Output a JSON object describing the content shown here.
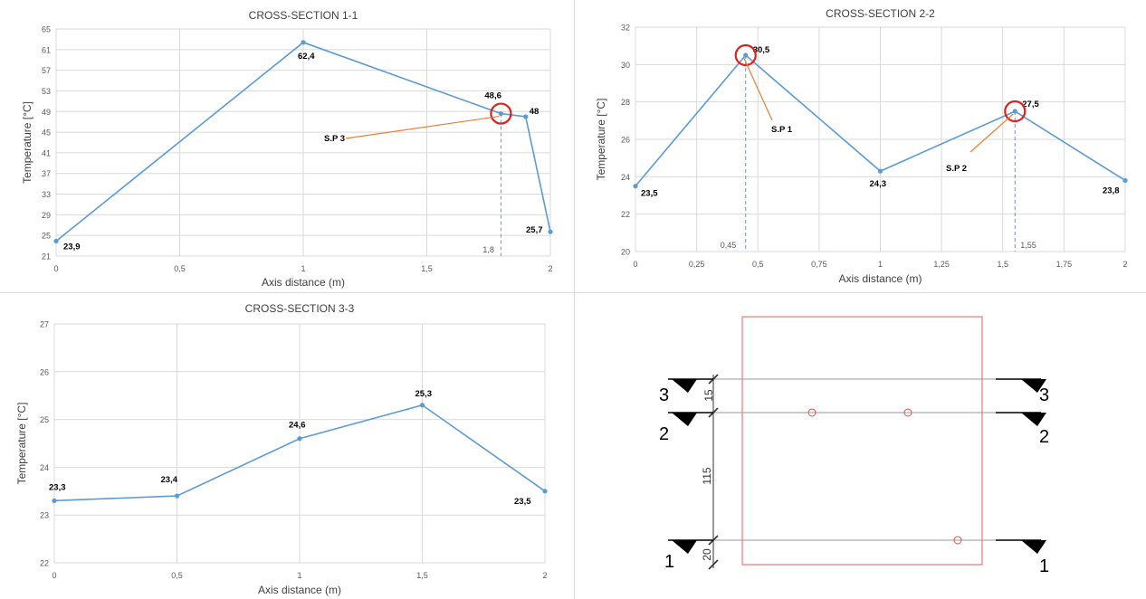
{
  "colors": {
    "series": "#5B9BD5",
    "grid": "#D9D9D9",
    "callout": "#ED7D31",
    "circle": "#E0201B",
    "text": "#404040",
    "section_outline": "#F08080"
  },
  "chart_data": [
    {
      "type": "scatter",
      "title": "CROSS-SECTION 1-1",
      "xlabel": "Axis distance (m)",
      "ylabel": "Temperature [°C]",
      "xlim": [
        0,
        2
      ],
      "ylim": [
        21,
        65
      ],
      "x_ticks": [
        0,
        0.5,
        1,
        1.5,
        2
      ],
      "x_tick_labels": [
        "0",
        "0,5",
        "1",
        "1,5",
        "2"
      ],
      "y_ticks": [
        21,
        25,
        29,
        33,
        37,
        41,
        45,
        49,
        53,
        57,
        61,
        65
      ],
      "y_tick_labels": [
        "21",
        "25",
        "29",
        "33",
        "37",
        "41",
        "45",
        "49",
        "53",
        "57",
        "61",
        "65"
      ],
      "grid": true,
      "points": [
        {
          "x": 0,
          "y": 23.9,
          "label": "23,9"
        },
        {
          "x": 1,
          "y": 62.4,
          "label": "62,4"
        },
        {
          "x": 1.8,
          "y": 48.6,
          "label": "48,6"
        },
        {
          "x": 1.9,
          "y": 48,
          "label": "48"
        },
        {
          "x": 2,
          "y": 25.7,
          "label": "25,7"
        }
      ],
      "markers": [
        {
          "x": 1.8,
          "label": "1,8"
        }
      ],
      "callouts": [
        {
          "label": "S.P 3",
          "x": 1.8,
          "y": 48.6
        }
      ]
    },
    {
      "type": "scatter",
      "title": "CROSS-SECTION 2-2",
      "xlabel": "Axis distance (m)",
      "ylabel": "Temperature [°C]",
      "xlim": [
        0,
        2
      ],
      "ylim": [
        20,
        32
      ],
      "x_ticks": [
        0,
        0.25,
        0.5,
        0.75,
        1,
        1.25,
        1.5,
        1.75,
        2
      ],
      "x_tick_labels": [
        "0",
        "0,25",
        "0,5",
        "0,75",
        "1",
        "1,25",
        "1,5",
        "1,75",
        "2"
      ],
      "y_ticks": [
        20,
        22,
        24,
        26,
        28,
        30,
        32
      ],
      "y_tick_labels": [
        "20",
        "22",
        "24",
        "26",
        "28",
        "30",
        "32"
      ],
      "grid": true,
      "points": [
        {
          "x": 0,
          "y": 23.5,
          "label": "23,5"
        },
        {
          "x": 0.45,
          "y": 30.5,
          "label": "30,5"
        },
        {
          "x": 1,
          "y": 24.3,
          "label": "24,3"
        },
        {
          "x": 1.55,
          "y": 27.5,
          "label": "27,5"
        },
        {
          "x": 2,
          "y": 23.8,
          "label": "23,8"
        }
      ],
      "markers": [
        {
          "x": 0.45,
          "label": "0,45"
        },
        {
          "x": 1.55,
          "label": "1,55"
        }
      ],
      "callouts": [
        {
          "label": "S.P 1",
          "x": 0.45,
          "y": 30.5
        },
        {
          "label": "S.P 2",
          "x": 1.55,
          "y": 27.5
        }
      ]
    },
    {
      "type": "scatter",
      "title": "CROSS-SECTION 3-3",
      "xlabel": "Axis distance (m)",
      "ylabel": "Temperature [°C]",
      "xlim": [
        0,
        2
      ],
      "ylim": [
        22,
        27
      ],
      "x_ticks": [
        0,
        0.5,
        1,
        1.5,
        2
      ],
      "x_tick_labels": [
        "0",
        "0,5",
        "1",
        "1,5",
        "2"
      ],
      "y_ticks": [
        22,
        23,
        24,
        25,
        26,
        27
      ],
      "y_tick_labels": [
        "22",
        "23",
        "24",
        "25",
        "26",
        "27"
      ],
      "grid": true,
      "points": [
        {
          "x": 0,
          "y": 23.3,
          "label": "23,3"
        },
        {
          "x": 0.5,
          "y": 23.4,
          "label": "23,4"
        },
        {
          "x": 1,
          "y": 24.6,
          "label": "24,6"
        },
        {
          "x": 1.5,
          "y": 25.3,
          "label": "25,3"
        },
        {
          "x": 2,
          "y": 23.5,
          "label": "23,5"
        }
      ],
      "markers": [],
      "callouts": []
    }
  ],
  "diagram": {
    "section_labels": {
      "s3": "3",
      "s2": "2",
      "s1": "1"
    },
    "dimensions": {
      "d1": "15",
      "d2": "115",
      "d3": "20"
    }
  }
}
